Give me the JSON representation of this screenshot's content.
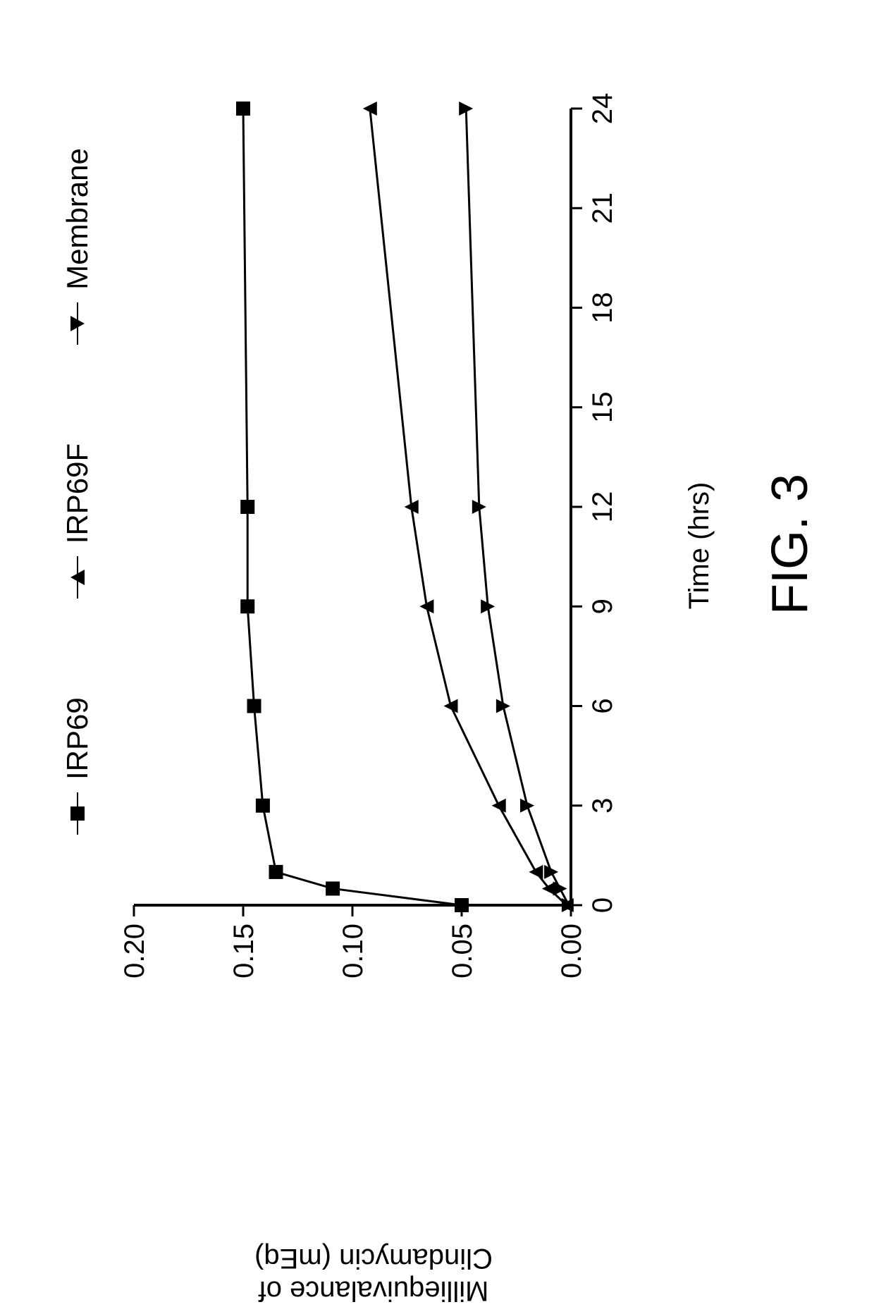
{
  "figure_title": "FIG. 3",
  "chart": {
    "type": "line",
    "background_color": "#ffffff",
    "axis_color": "#000000",
    "line_color": "#000000",
    "line_width": 3,
    "marker_size": 10,
    "xlabel": "Time (hrs)",
    "ylabel_line1": "Milliequivalance of",
    "ylabel_line2": "Clindamycin (mEq)",
    "label_fontsize": 40,
    "tick_fontsize": 40,
    "xlim": [
      0,
      24
    ],
    "ylim": [
      0.0,
      0.2
    ],
    "xtick_step": 3,
    "ytick_step": 0.05,
    "xticks": [
      0,
      3,
      6,
      9,
      12,
      15,
      18,
      21,
      24
    ],
    "yticks": [
      0.0,
      0.05,
      0.1,
      0.15,
      0.2
    ],
    "ytick_labels": [
      "0.00",
      "0.05",
      "0.10",
      "0.15",
      "0.20"
    ],
    "series": [
      {
        "name": "IRP69",
        "marker": "square",
        "x": [
          0,
          0.5,
          1,
          3,
          6,
          9,
          12,
          24
        ],
        "y": [
          0.05,
          0.109,
          0.135,
          0.141,
          0.145,
          0.148,
          0.148,
          0.15
        ]
      },
      {
        "name": "IRP69F",
        "marker": "triangle-up",
        "x": [
          0,
          0.5,
          1,
          3,
          6,
          9,
          12,
          24
        ],
        "y": [
          0.002,
          0.01,
          0.016,
          0.033,
          0.055,
          0.066,
          0.073,
          0.092
        ]
      },
      {
        "name": "Membrane",
        "marker": "triangle-down",
        "x": [
          0,
          0.5,
          1,
          3,
          6,
          9,
          12,
          24
        ],
        "y": [
          0.001,
          0.005,
          0.009,
          0.02,
          0.031,
          0.038,
          0.042,
          0.048
        ]
      }
    ]
  },
  "legend_items": [
    {
      "label": "IRP69",
      "marker": "square"
    },
    {
      "label": "IRP69F",
      "marker": "triangle-up"
    },
    {
      "label": "Membrane",
      "marker": "triangle-down"
    }
  ]
}
